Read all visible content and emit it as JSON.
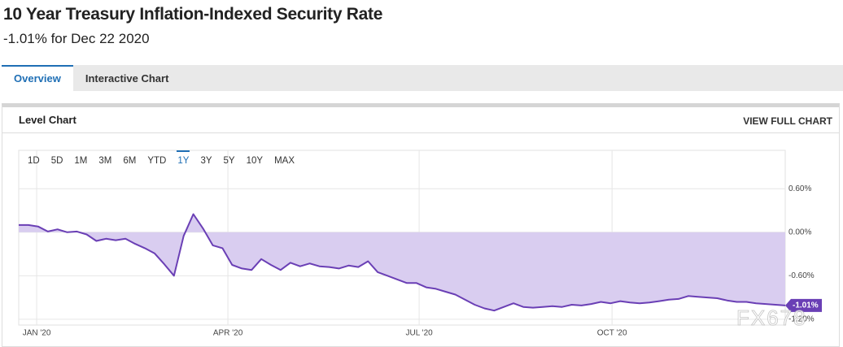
{
  "header": {
    "title": "10 Year Treasury Inflation-Indexed Security Rate",
    "subtitle": "-1.01% for Dec 22 2020"
  },
  "tabs": [
    "Overview",
    "Interactive Chart"
  ],
  "panel": {
    "title": "Level Chart",
    "link": "VIEW FULL CHART"
  },
  "range_buttons": [
    "1D",
    "5D",
    "1M",
    "3M",
    "6M",
    "YTD",
    "1Y",
    "3Y",
    "5Y",
    "10Y",
    "MAX"
  ],
  "active_range": 6,
  "chart_data": {
    "type": "area",
    "values": [
      0.1,
      0.1,
      0.08,
      0.01,
      0.04,
      0.0,
      0.01,
      -0.03,
      -0.12,
      -0.09,
      -0.11,
      -0.09,
      -0.16,
      -0.22,
      -0.29,
      -0.44,
      -0.6,
      -0.05,
      0.25,
      0.05,
      -0.18,
      -0.22,
      -0.45,
      -0.5,
      -0.52,
      -0.37,
      -0.45,
      -0.52,
      -0.42,
      -0.47,
      -0.43,
      -0.47,
      -0.48,
      -0.5,
      -0.46,
      -0.48,
      -0.4,
      -0.55,
      -0.6,
      -0.65,
      -0.7,
      -0.7,
      -0.76,
      -0.78,
      -0.82,
      -0.86,
      -0.93,
      -1.0,
      -1.05,
      -1.08,
      -1.03,
      -0.98,
      -1.03,
      -1.04,
      -1.03,
      -1.02,
      -1.03,
      -1.0,
      -1.01,
      -0.99,
      -0.96,
      -0.98,
      -0.95,
      -0.97,
      -0.98,
      -0.97,
      -0.95,
      -0.93,
      -0.92,
      -0.88,
      -0.89,
      -0.9,
      -0.91,
      -0.94,
      -0.96,
      -0.96,
      -0.98,
      -0.99,
      -1.0,
      -1.01
    ],
    "color": "#6a3fb5",
    "fill_color": "#d9cdf0",
    "xlim": [
      0,
      79
    ],
    "xticks": [
      {
        "value": 1.85,
        "label": "JAN '20"
      },
      {
        "value": 21.56,
        "label": "APR '20"
      },
      {
        "value": 41.27,
        "label": "JUL '20"
      },
      {
        "value": 61.15,
        "label": "OCT '20"
      }
    ],
    "ylim": [
      -1.28,
      1.13
    ],
    "yticks": [
      {
        "value": 0.6,
        "label": "0.60%"
      },
      {
        "value": 0,
        "label": "0.00%"
      },
      {
        "value": -0.6,
        "label": "-0.60%"
      },
      {
        "value": -1.2,
        "label": "-1.20%"
      }
    ],
    "grid": true,
    "current_label": "-1.01%"
  },
  "watermark": "FX678"
}
